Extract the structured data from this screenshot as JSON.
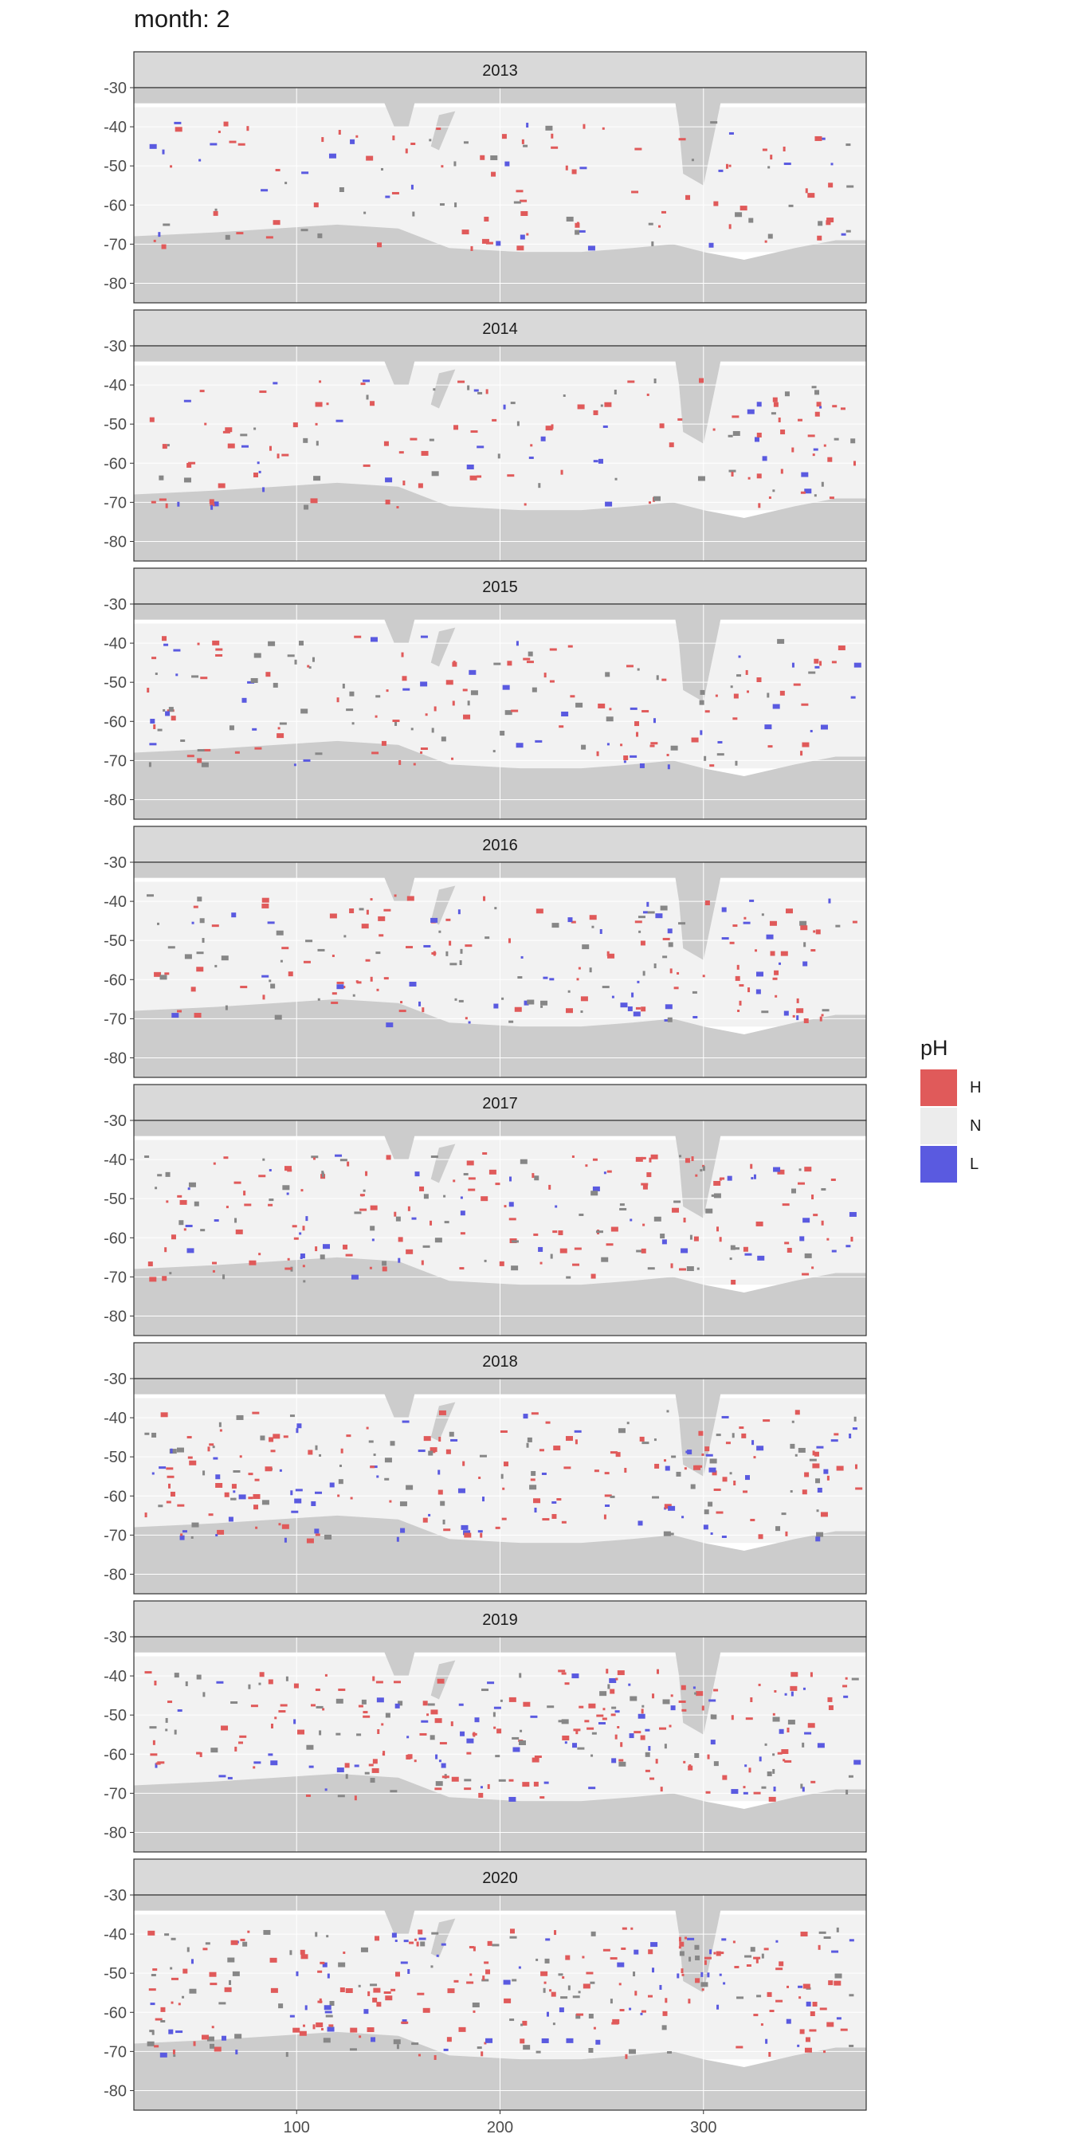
{
  "title": "month: 2",
  "colors": {
    "land": "#cccccc",
    "ocean": "#f2f2f2",
    "strip": "#d9d9d9",
    "grid": "#ffffff",
    "gray_cells": "#878787"
  },
  "legend": {
    "title": "pH",
    "items": [
      {
        "label": "H",
        "color": "#e05a5a"
      },
      {
        "label": "N",
        "color": "#ececec"
      },
      {
        "label": "L",
        "color": "#5a5ae0"
      }
    ]
  },
  "chart_data": {
    "type": "heatmap",
    "facet_by": "year",
    "panels": [
      "2013",
      "2014",
      "2015",
      "2016",
      "2017",
      "2018",
      "2019",
      "2020"
    ],
    "x_ticks": [
      "100",
      "200",
      "300"
    ],
    "x_tick_values": [
      100,
      200,
      300
    ],
    "y_ticks": [
      "-30",
      "-40",
      "-50",
      "-60",
      "-70",
      "-80"
    ],
    "y_tick_values": [
      -30,
      -40,
      -50,
      -60,
      -70,
      -80
    ],
    "xlim": [
      20,
      380
    ],
    "ylim": [
      -85,
      -30
    ],
    "fill_categories": [
      "H",
      "N",
      "L"
    ],
    "grid": true
  }
}
